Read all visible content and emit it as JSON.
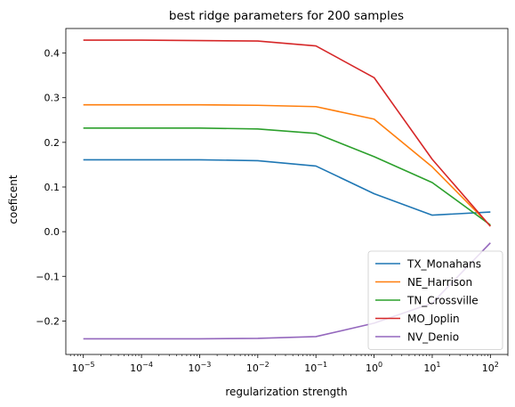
{
  "chart_data": {
    "type": "line",
    "title": "best ridge parameters for 200 samples",
    "xlabel": "regularization strength",
    "ylabel": "coeficent",
    "xscale": "log",
    "xlim": [
      5e-06,
      200
    ],
    "ylim": [
      -0.275,
      0.455
    ],
    "grid": false,
    "legend_position": "lower-right",
    "x": [
      1e-05,
      0.0001,
      0.001,
      0.01,
      0.1,
      1,
      10,
      100
    ],
    "x_ticks": [
      {
        "value": 1e-05,
        "base": "10",
        "exp": "−5"
      },
      {
        "value": 0.0001,
        "base": "10",
        "exp": "−4"
      },
      {
        "value": 0.001,
        "base": "10",
        "exp": "−3"
      },
      {
        "value": 0.01,
        "base": "10",
        "exp": "−2"
      },
      {
        "value": 0.1,
        "base": "10",
        "exp": "−1"
      },
      {
        "value": 1,
        "base": "10",
        "exp": "0"
      },
      {
        "value": 10,
        "base": "10",
        "exp": "1"
      },
      {
        "value": 100,
        "base": "10",
        "exp": "2"
      }
    ],
    "y_ticks": [
      {
        "value": -0.2,
        "label": "−0.2"
      },
      {
        "value": -0.1,
        "label": "−0.1"
      },
      {
        "value": 0.0,
        "label": "0.0"
      },
      {
        "value": 0.1,
        "label": "0.1"
      },
      {
        "value": 0.2,
        "label": "0.2"
      },
      {
        "value": 0.3,
        "label": "0.3"
      },
      {
        "value": 0.4,
        "label": "0.4"
      }
    ],
    "series": [
      {
        "name": "TX_Monahans",
        "color": "#1f77b4",
        "values": [
          0.161,
          0.161,
          0.161,
          0.159,
          0.147,
          0.085,
          0.037,
          0.044
        ]
      },
      {
        "name": "NE_Harrison",
        "color": "#ff7f0e",
        "values": [
          0.284,
          0.284,
          0.284,
          0.283,
          0.28,
          0.252,
          0.145,
          0.013
        ]
      },
      {
        "name": "TN_Crossville",
        "color": "#2ca02c",
        "values": [
          0.232,
          0.232,
          0.232,
          0.23,
          0.22,
          0.168,
          0.11,
          0.015
        ]
      },
      {
        "name": "MO_Joplin",
        "color": "#d62728",
        "values": [
          0.429,
          0.429,
          0.428,
          0.427,
          0.416,
          0.345,
          0.162,
          0.012
        ]
      },
      {
        "name": "NV_Denio",
        "color": "#9467bd",
        "values": [
          -0.24,
          -0.24,
          -0.24,
          -0.239,
          -0.235,
          -0.205,
          -0.16,
          -0.025
        ]
      }
    ]
  }
}
